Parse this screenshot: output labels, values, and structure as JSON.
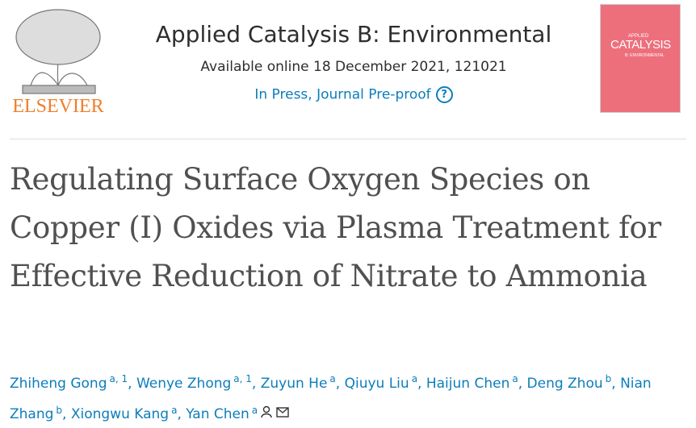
{
  "header": {
    "publisher": "ELSEVIER",
    "journal": "Applied Catalysis B: Environmental",
    "availability": "Available online 18 December 2021, 121021",
    "status": "In Press, Journal Pre-proof",
    "cover": {
      "series": "APPLIED",
      "title": "CATALYSIS",
      "subtitle": "B: ENVIRONMENTAL"
    }
  },
  "article": {
    "title": "Regulating Surface Oxygen Species on Copper (I) Oxides via Plasma Treatment for Effective Reduction of Nitrate to Ammonia",
    "authors": [
      {
        "name": "Zhiheng Gong",
        "sup": "a, 1"
      },
      {
        "name": "Wenye Zhong",
        "sup": "a, 1"
      },
      {
        "name": "Zuyun He",
        "sup": "a"
      },
      {
        "name": "Qiuyu Liu",
        "sup": "a"
      },
      {
        "name": "Haijun Chen",
        "sup": "a"
      },
      {
        "name": "Deng Zhou",
        "sup": "b"
      },
      {
        "name": "Nian Zhang",
        "sup": "b"
      },
      {
        "name": "Xiongwu Kang",
        "sup": "a"
      },
      {
        "name": "Yan Chen",
        "sup": "a"
      }
    ]
  }
}
